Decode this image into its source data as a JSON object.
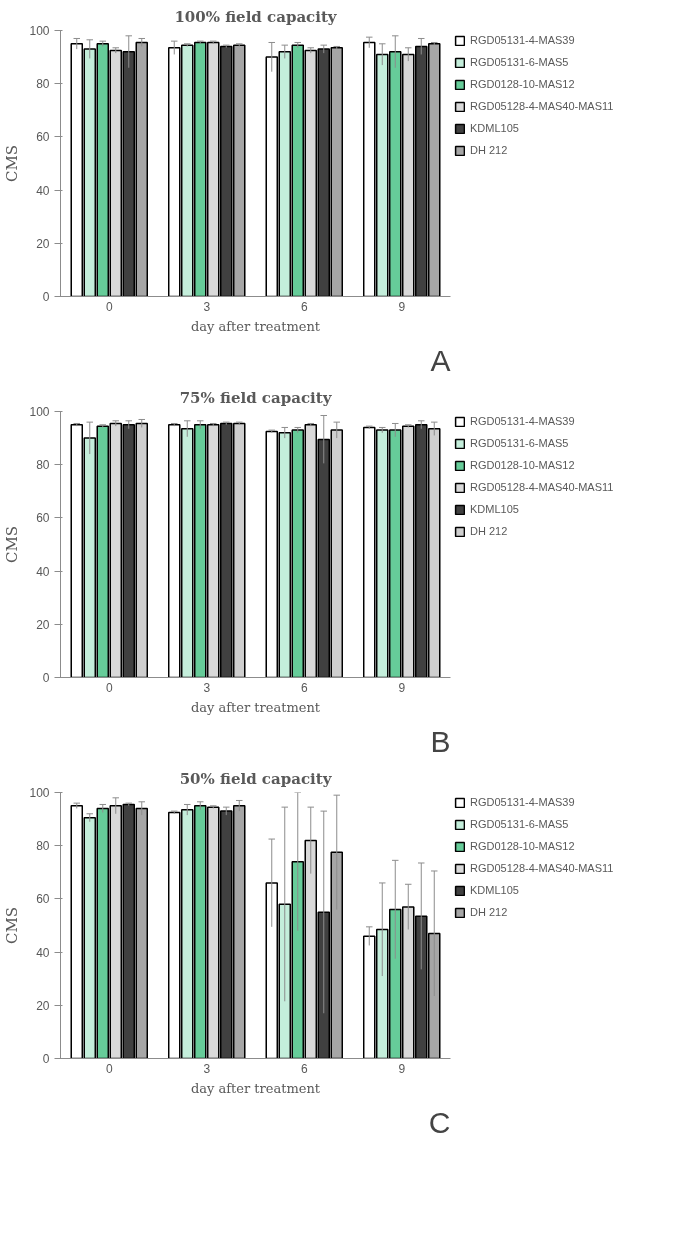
{
  "chart_data": [
    {
      "type": "bar",
      "title": "100% field capacity",
      "xlabel": "day after treatment",
      "ylabel": "CMS",
      "categories": [
        "0",
        "3",
        "6",
        "9"
      ],
      "ylim": [
        0,
        100
      ],
      "yticks": [
        0,
        20,
        40,
        60,
        80,
        100
      ],
      "grid": false,
      "legend": "right",
      "annotations": [
        "A"
      ],
      "series": [
        {
          "name": "RGD05131-4-MAS39",
          "color": "#ffffff",
          "values": [
            95,
            93.5,
            90,
            95.5
          ],
          "errors": [
            2,
            2.5,
            5.5,
            2
          ]
        },
        {
          "name": "RGD05131-6-MAS5",
          "color": "#c4eedb",
          "values": [
            93,
            94.5,
            92,
            91
          ],
          "errors": [
            3.5,
            0.5,
            2.5,
            4
          ]
        },
        {
          "name": "RGD0128-10-MAS12",
          "color": "#66cc99",
          "values": [
            95,
            95.5,
            94.5,
            92
          ],
          "errors": [
            1,
            0.5,
            1,
            6
          ]
        },
        {
          "name": "RGD05128-4-MAS40-MAS11",
          "color": "#d9d9d9",
          "values": [
            92.5,
            95.5,
            92.5,
            91
          ],
          "errors": [
            1,
            0.5,
            1,
            2.5
          ]
        },
        {
          "name": "KDML105",
          "color": "#404040",
          "values": [
            92,
            94,
            93,
            94
          ],
          "errors": [
            6,
            0.5,
            1.5,
            3
          ]
        },
        {
          "name": "DH 212",
          "color": "#a6a6a6",
          "values": [
            95.5,
            94.5,
            93.5,
            95
          ],
          "errors": [
            1.5,
            0.5,
            0.5,
            0.5
          ]
        }
      ]
    },
    {
      "type": "bar",
      "title": "75% field capacity",
      "xlabel": "day after treatment",
      "ylabel": "CMS",
      "categories": [
        "0",
        "3",
        "6",
        "9"
      ],
      "ylim": [
        0,
        100
      ],
      "yticks": [
        0,
        20,
        40,
        60,
        80,
        100
      ],
      "grid": false,
      "legend": "right",
      "annotations": [
        "B"
      ],
      "series": [
        {
          "name": "RGD05131-4-MAS39",
          "color": "#ffffff",
          "values": [
            95,
            95,
            92.5,
            94
          ],
          "errors": [
            0.5,
            0.5,
            0.5,
            0.5
          ]
        },
        {
          "name": "RGD05131-6-MAS5",
          "color": "#c4eedb",
          "values": [
            90,
            93.5,
            92,
            93
          ],
          "errors": [
            6,
            3,
            2,
            1
          ]
        },
        {
          "name": "RGD0128-10-MAS12",
          "color": "#66cc99",
          "values": [
            94.5,
            95,
            93,
            93
          ],
          "errors": [
            0.5,
            1.5,
            1,
            2.5
          ]
        },
        {
          "name": "RGD05128-4-MAS40-MAS11",
          "color": "#d9d9d9",
          "values": [
            95.5,
            95,
            95,
            94.5
          ],
          "errors": [
            1,
            0.5,
            0.5,
            0.5
          ]
        },
        {
          "name": "KDML105",
          "color": "#404040",
          "values": [
            95,
            95.5,
            89.5,
            95
          ],
          "errors": [
            1.5,
            0.5,
            9,
            1.5
          ]
        },
        {
          "name": "DH 212",
          "color": "#cfcfcf",
          "values": [
            95.5,
            95.5,
            93,
            93.5
          ],
          "errors": [
            1.5,
            0.5,
            3,
            2.5
          ]
        }
      ]
    },
    {
      "type": "bar",
      "title": "50% field capacity",
      "xlabel": "day after treatment",
      "ylabel": "CMS",
      "categories": [
        "0",
        "3",
        "6",
        "9"
      ],
      "ylim": [
        0,
        100
      ],
      "yticks": [
        0,
        20,
        40,
        60,
        80,
        100
      ],
      "grid": false,
      "legend": "right",
      "annotations": [
        "C"
      ],
      "series": [
        {
          "name": "RGD05131-4-MAS39",
          "color": "#ffffff",
          "values": [
            95,
            92.5,
            66,
            46
          ],
          "errors": [
            1,
            0.5,
            16.5,
            3.5
          ]
        },
        {
          "name": "RGD05131-6-MAS5",
          "color": "#c4eedb",
          "values": [
            90.5,
            93.5,
            58,
            48.5
          ],
          "errors": [
            1.5,
            2,
            36.5,
            17.5
          ]
        },
        {
          "name": "RGD0128-10-MAS12",
          "color": "#66cc99",
          "values": [
            94,
            95,
            74,
            56
          ],
          "errors": [
            1.5,
            1.5,
            26,
            18.5
          ]
        },
        {
          "name": "RGD05128-4-MAS40-MAS11",
          "color": "#d9d9d9",
          "values": [
            95,
            94.5,
            82,
            57
          ],
          "errors": [
            3,
            0.5,
            12.5,
            8.5
          ]
        },
        {
          "name": "KDML105",
          "color": "#404040",
          "values": [
            95.5,
            93,
            55,
            53.5
          ],
          "errors": [
            0.5,
            1.5,
            38,
            20
          ]
        },
        {
          "name": "DH 212",
          "color": "#a6a6a6",
          "values": [
            94,
            95,
            77.5,
            47
          ],
          "errors": [
            2.5,
            2,
            21.5,
            23.5
          ]
        }
      ]
    }
  ]
}
